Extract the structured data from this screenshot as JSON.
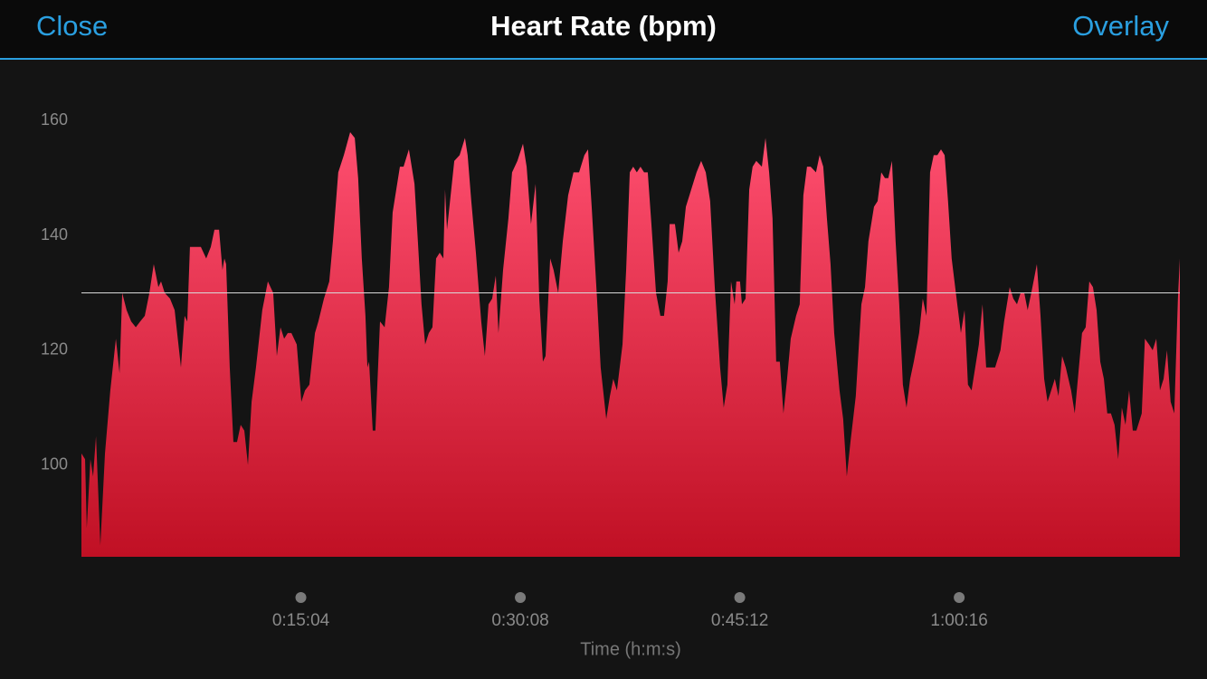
{
  "header": {
    "left": "Close",
    "title": "Heart Rate (bpm)",
    "right": "Overlay"
  },
  "chart_data": {
    "type": "area",
    "x_label": "Time (h:m:s)",
    "color": "#e8274a",
    "average_line": 130,
    "xlim": [
      0,
      4525
    ],
    "ylim": [
      84,
      170
    ],
    "yticks": [
      100,
      120,
      140,
      160
    ],
    "xticks": [
      {
        "value": 904,
        "label": "0:15:04"
      },
      {
        "value": 1808,
        "label": "0:30:08"
      },
      {
        "value": 2712,
        "label": "0:45:12"
      },
      {
        "value": 3616,
        "label": "1:00:16"
      }
    ],
    "x": [
      0,
      15,
      22,
      37,
      48,
      60,
      78,
      97,
      119,
      142,
      157,
      168,
      186,
      205,
      224,
      242,
      261,
      280,
      298,
      317,
      328,
      343,
      365,
      384,
      410,
      425,
      436,
      447,
      492,
      514,
      533,
      548,
      567,
      581,
      589,
      596,
      611,
      626,
      641,
      656,
      671,
      686,
      701,
      719,
      745,
      768,
      790,
      805,
      820,
      835,
      850,
      865,
      887,
      906,
      921,
      939,
      962,
      976,
      999,
      1021,
      1036,
      1058,
      1081,
      1107,
      1126,
      1140,
      1155,
      1170,
      1178,
      1185,
      1200,
      1211,
      1230,
      1249,
      1267,
      1282,
      1297,
      1312,
      1327,
      1349,
      1372,
      1386,
      1401,
      1416,
      1431,
      1446,
      1461,
      1476,
      1491,
      1498,
      1506,
      1521,
      1536,
      1558,
      1580,
      1591,
      1606,
      1625,
      1647,
      1662,
      1677,
      1692,
      1707,
      1718,
      1737,
      1759,
      1774,
      1796,
      1819,
      1834,
      1852,
      1871,
      1886,
      1901,
      1912,
      1931,
      1945,
      1964,
      1983,
      2005,
      2027,
      2050,
      2072,
      2087,
      2102,
      2124,
      2139,
      2162,
      2177,
      2191,
      2206,
      2229,
      2244,
      2259,
      2273,
      2288,
      2303,
      2318,
      2333,
      2348,
      2367,
      2385,
      2400,
      2415,
      2423,
      2445,
      2460,
      2475,
      2490,
      2512,
      2534,
      2553,
      2572,
      2590,
      2609,
      2631,
      2646,
      2661,
      2676,
      2691,
      2698,
      2713,
      2721,
      2736,
      2751,
      2765,
      2780,
      2803,
      2818,
      2833,
      2847,
      2862,
      2877,
      2892,
      2907,
      2922,
      2944,
      2959,
      2974,
      2989,
      3004,
      3026,
      3041,
      3056,
      3071,
      3086,
      3101,
      3123,
      3138,
      3153,
      3168,
      3190,
      3213,
      3228,
      3242,
      3265,
      3280,
      3295,
      3310,
      3324,
      3339,
      3354,
      3369,
      3384,
      3399,
      3414,
      3429,
      3451,
      3466,
      3481,
      3496,
      3511,
      3526,
      3541,
      3556,
      3570,
      3585,
      3608,
      3623,
      3638,
      3652,
      3667,
      3682,
      3697,
      3712,
      3727,
      3742,
      3764,
      3786,
      3801,
      3824,
      3839,
      3854,
      3869,
      3884,
      3898,
      3913,
      3936,
      3951,
      3966,
      3980,
      3995,
      4010,
      4025,
      4040,
      4055,
      4077,
      4092,
      4107,
      4122,
      4137,
      4152,
      4167,
      4182,
      4197,
      4212,
      4226,
      4241,
      4256,
      4271,
      4286,
      4301,
      4316,
      4331,
      4346,
      4368,
      4381,
      4398,
      4413,
      4428,
      4443,
      4458,
      4472,
      4487,
      4502,
      4517,
      4525
    ],
    "values": [
      102,
      101,
      89,
      101,
      98,
      105,
      86,
      102,
      113,
      122,
      116,
      130,
      127,
      125,
      124,
      125,
      126,
      130,
      135,
      131,
      132,
      130,
      129,
      127,
      117,
      126,
      125,
      138,
      138,
      136,
      138,
      141,
      141,
      134,
      136,
      135,
      117,
      104,
      104,
      107,
      106,
      100,
      111,
      117,
      127,
      132,
      130,
      119,
      124,
      122,
      123,
      123,
      121,
      111,
      113,
      114,
      123,
      125,
      129,
      132,
      139,
      151,
      154,
      158,
      157,
      150,
      136,
      126,
      117,
      118,
      106,
      106,
      125,
      124,
      131,
      144,
      148,
      152,
      152,
      155,
      149,
      139,
      128,
      121,
      123,
      124,
      136,
      137,
      136,
      148,
      141,
      147,
      153,
      154,
      157,
      154,
      146,
      137,
      125,
      119,
      128,
      129,
      133,
      123,
      134,
      143,
      151,
      153,
      156,
      152,
      142,
      149,
      129,
      118,
      119,
      136,
      134,
      130,
      139,
      147,
      151,
      151,
      154,
      155,
      145,
      129,
      117,
      108,
      112,
      115,
      113,
      121,
      134,
      151,
      152,
      151,
      152,
      151,
      151,
      142,
      130,
      126,
      126,
      132,
      142,
      142,
      137,
      139,
      145,
      148,
      151,
      153,
      151,
      146,
      131,
      117,
      110,
      114,
      132,
      128,
      132,
      132,
      128,
      129,
      148,
      152,
      153,
      152,
      157,
      151,
      143,
      118,
      118,
      109,
      115,
      122,
      126,
      128,
      147,
      152,
      152,
      151,
      154,
      152,
      143,
      135,
      123,
      113,
      108,
      98,
      104,
      112,
      128,
      131,
      139,
      145,
      146,
      151,
      150,
      150,
      153,
      139,
      128,
      114,
      110,
      115,
      118,
      123,
      129,
      126,
      151,
      154,
      154,
      155,
      154,
      146,
      136,
      128,
      123,
      127,
      114,
      113,
      117,
      121,
      128,
      117,
      117,
      117,
      120,
      125,
      131,
      129,
      128,
      130,
      130,
      127,
      130,
      135,
      126,
      115,
      111,
      113,
      115,
      112,
      119,
      117,
      113,
      109,
      116,
      123,
      124,
      132,
      131,
      127,
      118,
      115,
      109,
      109,
      107,
      101,
      110,
      107,
      113,
      106,
      106,
      109,
      122,
      121,
      120,
      122,
      113,
      115,
      120,
      111,
      109,
      129,
      136
    ]
  }
}
